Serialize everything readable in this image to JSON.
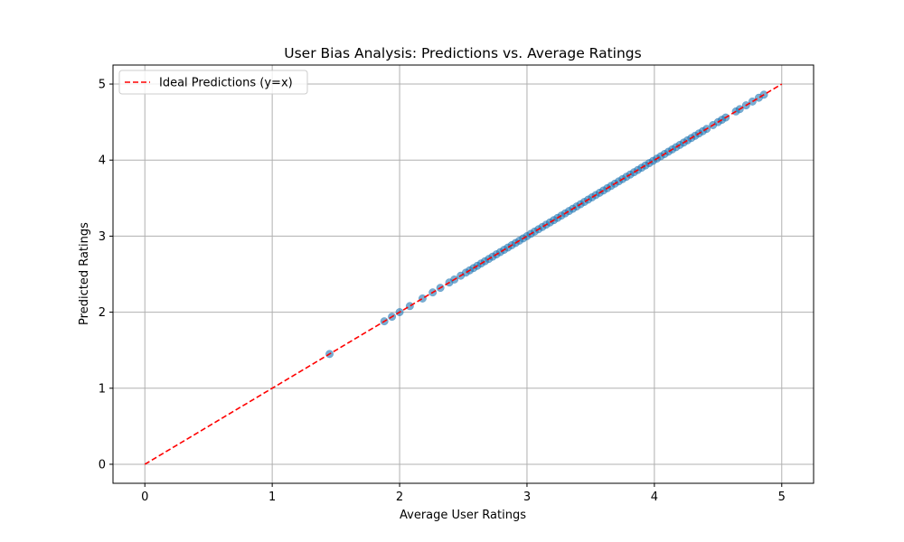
{
  "chart_data": {
    "type": "scatter",
    "title": "User Bias Analysis: Predictions vs. Average Ratings",
    "xlabel": "Average User Ratings",
    "ylabel": "Predicted Ratings",
    "xlim": [
      -0.25,
      5.25
    ],
    "ylim": [
      -0.25,
      5.25
    ],
    "xticks": [
      "0",
      "1",
      "2",
      "3",
      "4",
      "5"
    ],
    "yticks": [
      "0",
      "1",
      "2",
      "3",
      "4",
      "5"
    ],
    "grid": true,
    "legend": {
      "placement": "upper-left",
      "entries": [
        "Ideal Predictions (y=x)"
      ]
    },
    "reference_line": {
      "name": "Ideal Predictions (y=x)",
      "x": [
        0,
        5
      ],
      "y": [
        0,
        5
      ],
      "style": "dashed",
      "color": "#ff0000"
    },
    "scatter": {
      "color": "#1f77b4",
      "alpha": 0.6,
      "points": [
        [
          1.45,
          1.45
        ],
        [
          1.88,
          1.88
        ],
        [
          1.94,
          1.94
        ],
        [
          2.0,
          2.0
        ],
        [
          2.08,
          2.08
        ],
        [
          2.18,
          2.18
        ],
        [
          2.26,
          2.26
        ],
        [
          2.32,
          2.32
        ],
        [
          2.39,
          2.39
        ],
        [
          2.43,
          2.43
        ],
        [
          2.48,
          2.48
        ],
        [
          2.52,
          2.52
        ],
        [
          2.55,
          2.55
        ],
        [
          2.58,
          2.58
        ],
        [
          2.61,
          2.61
        ],
        [
          2.64,
          2.64
        ],
        [
          2.67,
          2.67
        ],
        [
          2.7,
          2.7
        ],
        [
          2.73,
          2.73
        ],
        [
          2.76,
          2.76
        ],
        [
          2.79,
          2.79
        ],
        [
          2.82,
          2.82
        ],
        [
          2.85,
          2.85
        ],
        [
          2.88,
          2.88
        ],
        [
          2.91,
          2.91
        ],
        [
          2.94,
          2.94
        ],
        [
          2.97,
          2.97
        ],
        [
          3.0,
          3.0
        ],
        [
          3.03,
          3.03
        ],
        [
          3.06,
          3.06
        ],
        [
          3.09,
          3.09
        ],
        [
          3.12,
          3.12
        ],
        [
          3.15,
          3.15
        ],
        [
          3.18,
          3.18
        ],
        [
          3.21,
          3.21
        ],
        [
          3.24,
          3.24
        ],
        [
          3.27,
          3.27
        ],
        [
          3.3,
          3.3
        ],
        [
          3.33,
          3.33
        ],
        [
          3.36,
          3.36
        ],
        [
          3.39,
          3.39
        ],
        [
          3.42,
          3.42
        ],
        [
          3.45,
          3.45
        ],
        [
          3.48,
          3.48
        ],
        [
          3.51,
          3.51
        ],
        [
          3.54,
          3.54
        ],
        [
          3.57,
          3.57
        ],
        [
          3.6,
          3.6
        ],
        [
          3.63,
          3.63
        ],
        [
          3.66,
          3.66
        ],
        [
          3.69,
          3.69
        ],
        [
          3.72,
          3.72
        ],
        [
          3.75,
          3.75
        ],
        [
          3.78,
          3.78
        ],
        [
          3.81,
          3.81
        ],
        [
          3.84,
          3.84
        ],
        [
          3.87,
          3.87
        ],
        [
          3.9,
          3.9
        ],
        [
          3.93,
          3.93
        ],
        [
          3.96,
          3.96
        ],
        [
          3.99,
          3.99
        ],
        [
          4.02,
          4.02
        ],
        [
          4.05,
          4.05
        ],
        [
          4.08,
          4.08
        ],
        [
          4.11,
          4.11
        ],
        [
          4.14,
          4.14
        ],
        [
          4.17,
          4.17
        ],
        [
          4.2,
          4.2
        ],
        [
          4.23,
          4.23
        ],
        [
          4.26,
          4.26
        ],
        [
          4.29,
          4.29
        ],
        [
          4.32,
          4.32
        ],
        [
          4.35,
          4.35
        ],
        [
          4.38,
          4.38
        ],
        [
          4.41,
          4.41
        ],
        [
          4.46,
          4.46
        ],
        [
          4.5,
          4.5
        ],
        [
          4.53,
          4.53
        ],
        [
          4.56,
          4.56
        ],
        [
          4.64,
          4.64
        ],
        [
          4.67,
          4.67
        ],
        [
          4.72,
          4.72
        ],
        [
          4.77,
          4.77
        ],
        [
          4.82,
          4.82
        ],
        [
          4.86,
          4.86
        ]
      ]
    }
  }
}
